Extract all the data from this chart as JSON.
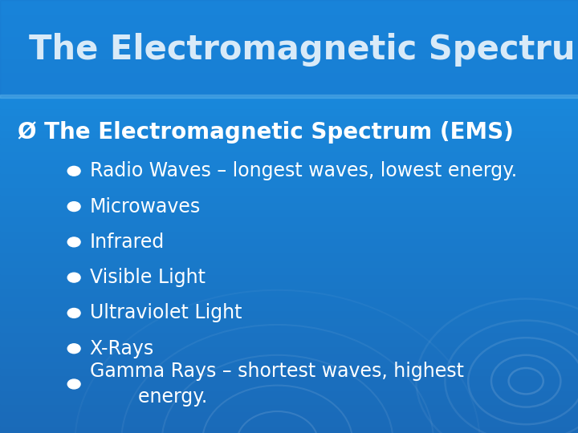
{
  "title": "The Electromagnetic Spectrum",
  "subtitle": "Ø The Electromagnetic Spectrum (EMS)",
  "bullet_points": [
    "Radio Waves – longest waves, lowest energy.",
    "Microwaves",
    "Infrared",
    "Visible Light",
    "Ultraviolet Light",
    "X-Rays",
    "Gamma Rays – shortest waves, highest\n        energy."
  ],
  "bg_color": "#1a7fd4",
  "bg_color2": "#1a6ab8",
  "title_color": "#d8eaf8",
  "subtitle_color": "#ffffff",
  "bullet_color": "#ffffff",
  "arrow_color": "#90ee90",
  "title_fontsize": 30,
  "subtitle_fontsize": 20,
  "bullet_fontsize": 17
}
